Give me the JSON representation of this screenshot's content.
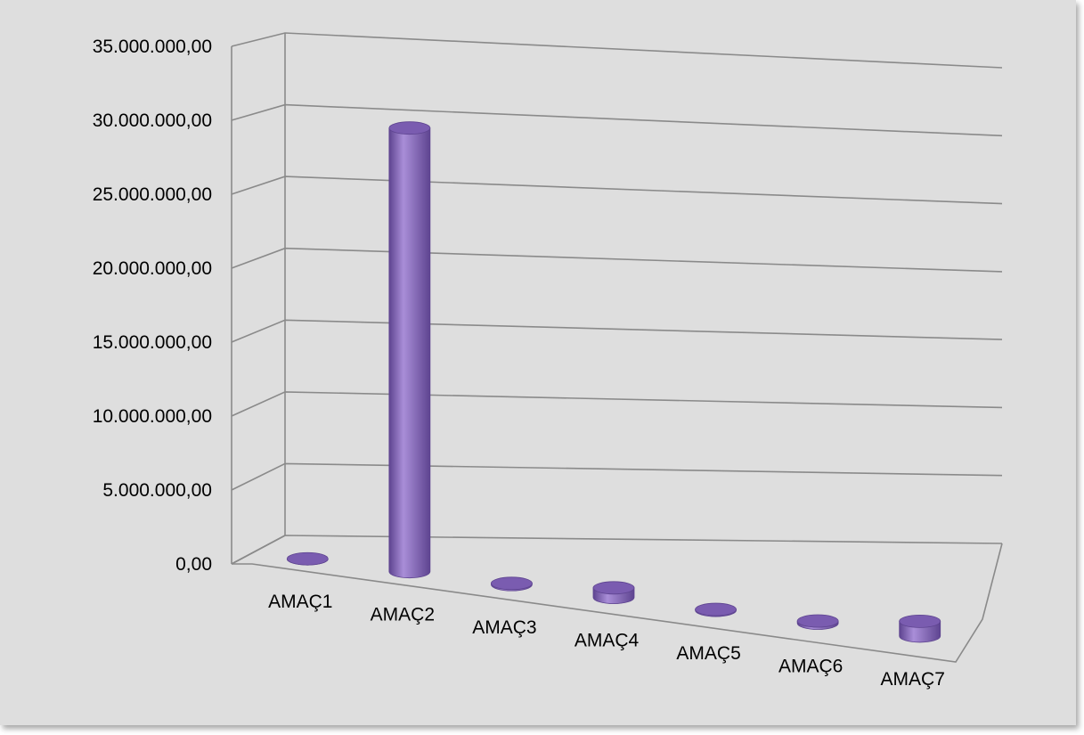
{
  "chart_data": {
    "type": "bar",
    "style": "3d-cylinder",
    "categories": [
      "AMAÇ1",
      "AMAÇ2",
      "AMAÇ3",
      "AMAÇ4",
      "AMAÇ5",
      "AMAÇ6",
      "AMAÇ7"
    ],
    "values": [
      0,
      30000000,
      80000,
      650000,
      60000,
      150000,
      1000000
    ],
    "y_tick_labels": [
      "0,00",
      "5.000.000,00",
      "10.000.000,00",
      "15.000.000,00",
      "20.000.000,00",
      "25.000.000,00",
      "30.000.000,00",
      "35.000.000,00"
    ],
    "ylim": [
      0,
      35000000
    ],
    "grid": true,
    "legend": "none",
    "colors": {
      "bar": "#8466b8",
      "bar_light": "#a98ed8",
      "bar_dark": "#5e4490",
      "bar_top": "#7a5cb0",
      "grid": "#8a8a8a",
      "background": "#dedede"
    }
  }
}
